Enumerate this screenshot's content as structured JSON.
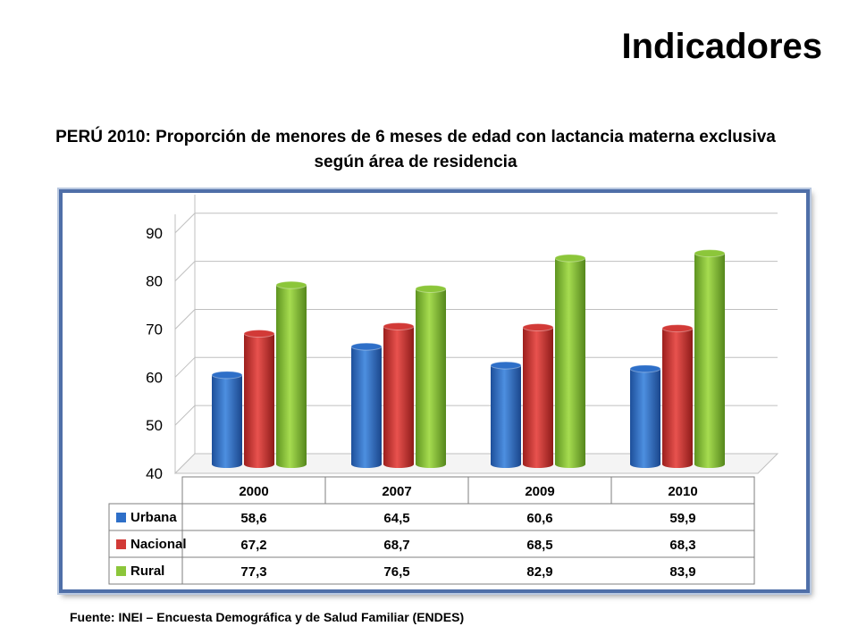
{
  "page": {
    "heading": "Indicadores",
    "source": "Fuente: INEI – Encuesta Demográfica y de Salud Familiar (ENDES)"
  },
  "chart_data": {
    "type": "bar",
    "title": "PERÚ 2010: Proporción de menores de 6 meses de edad con lactancia materna exclusiva según área de residencia",
    "categories": [
      "2000",
      "2007",
      "2009",
      "2010"
    ],
    "series": [
      {
        "name": "Urbana",
        "values": [
          58.6,
          64.5,
          60.6,
          59.9
        ],
        "display": [
          "58,6",
          "64,5",
          "60,6",
          "59,9"
        ],
        "color": "#2e6fc8"
      },
      {
        "name": "Nacional",
        "values": [
          67.2,
          68.7,
          68.5,
          68.3
        ],
        "display": [
          "67,2",
          "68,7",
          "68,5",
          "68,3"
        ],
        "color": "#d23a37"
      },
      {
        "name": "Rural",
        "values": [
          77.3,
          76.5,
          82.9,
          83.9
        ],
        "display": [
          "77,3",
          "76,5",
          "82,9",
          "83,9"
        ],
        "color": "#8cc63a"
      }
    ],
    "yticks": [
      "40",
      "50",
      "60",
      "70",
      "80",
      "90"
    ],
    "ylim": [
      40,
      92
    ],
    "grid": true,
    "legend": "data-table"
  }
}
